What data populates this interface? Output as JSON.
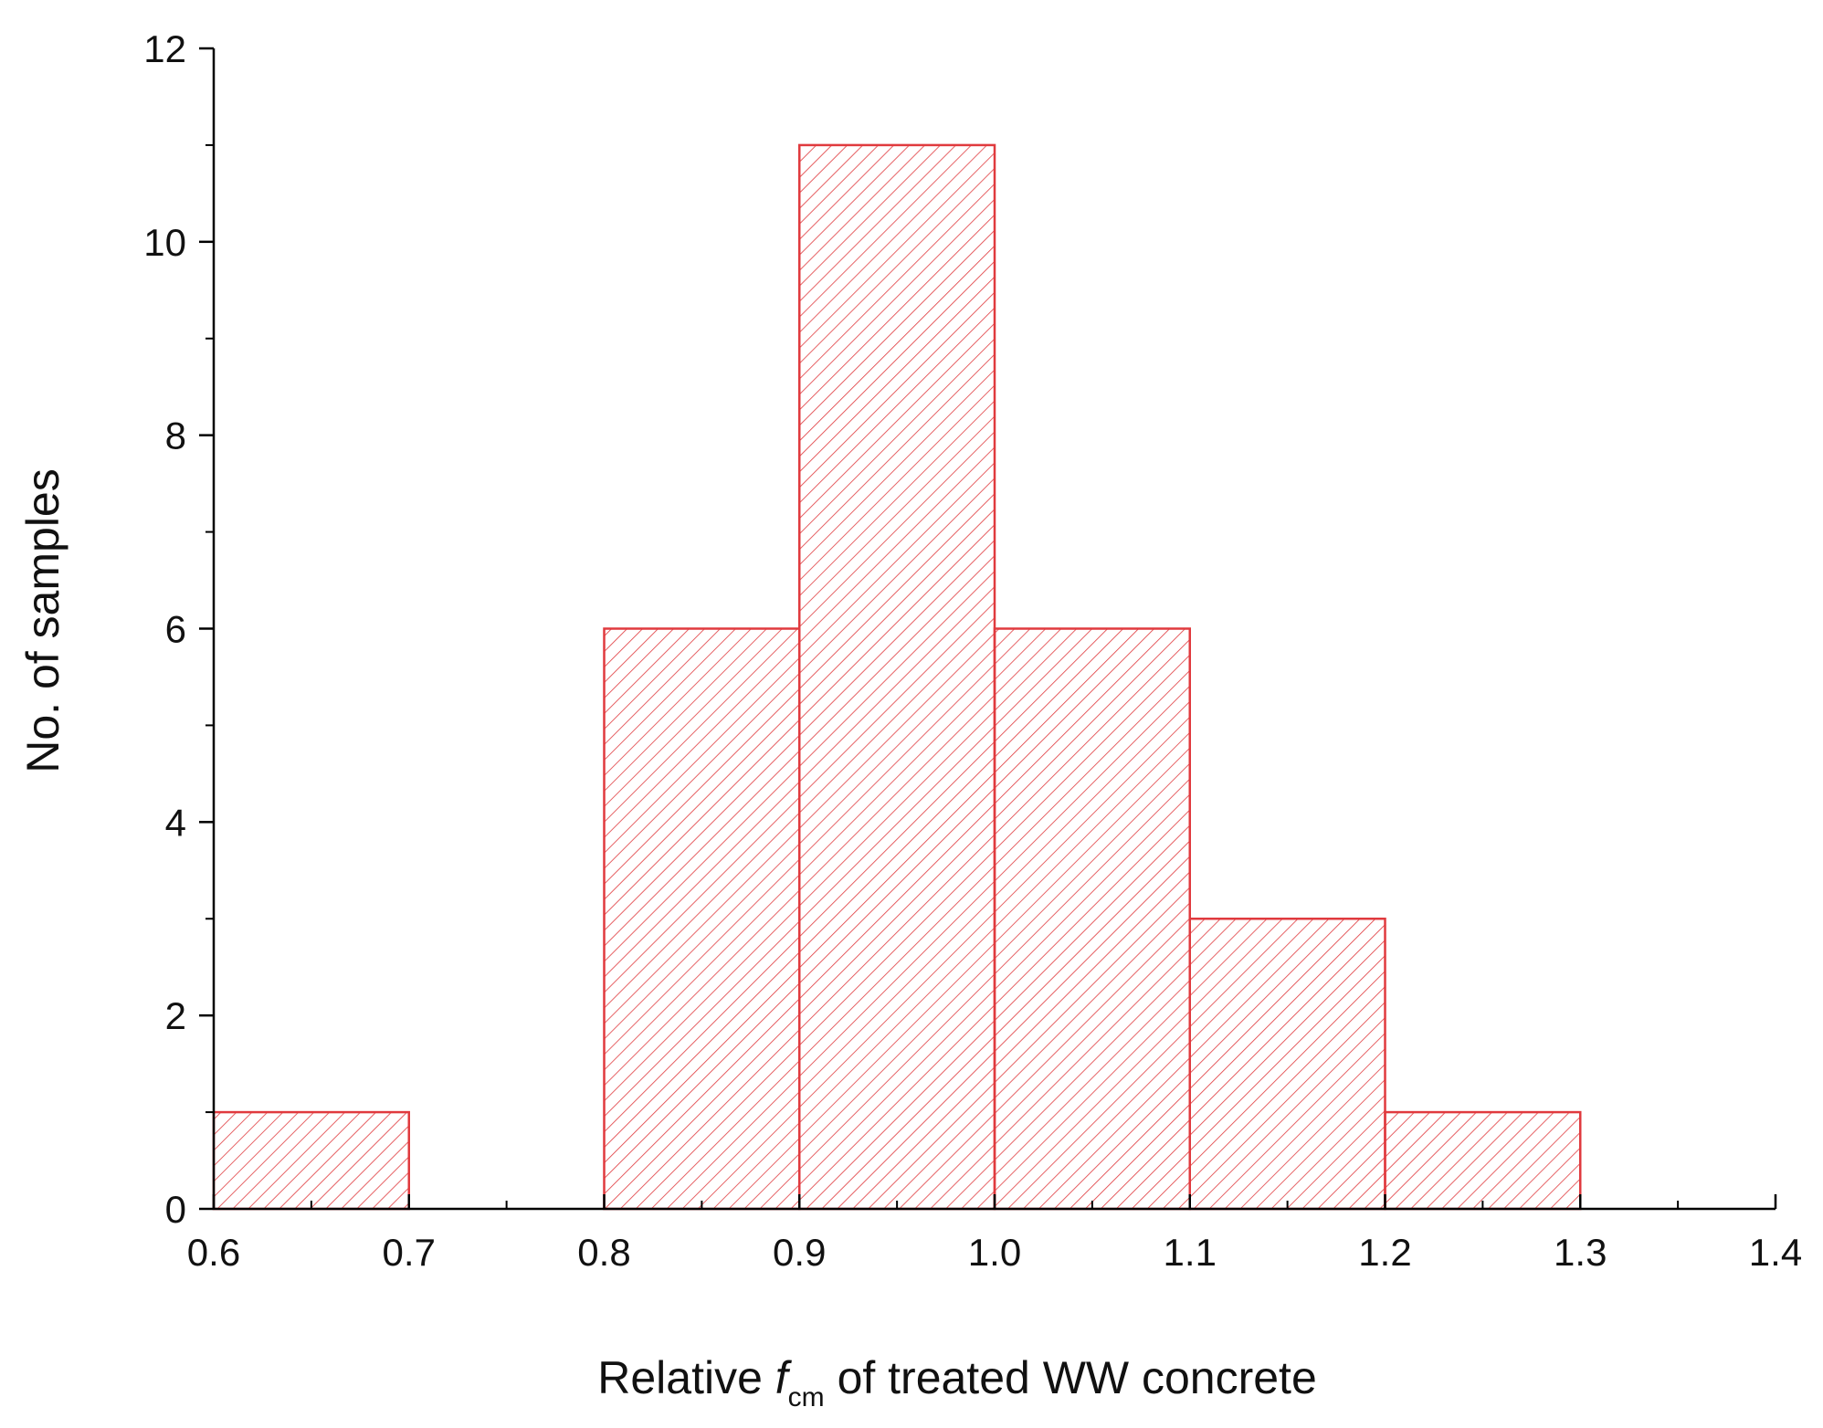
{
  "chart_data": {
    "type": "bar",
    "histogram": true,
    "bin_width": 0.1,
    "bins": [
      {
        "start": 0.6,
        "end": 0.7,
        "count": 1
      },
      {
        "start": 0.7,
        "end": 0.8,
        "count": 0
      },
      {
        "start": 0.8,
        "end": 0.9,
        "count": 6
      },
      {
        "start": 0.9,
        "end": 1.0,
        "count": 11
      },
      {
        "start": 1.0,
        "end": 1.1,
        "count": 6
      },
      {
        "start": 1.1,
        "end": 1.2,
        "count": 3
      },
      {
        "start": 1.2,
        "end": 1.3,
        "count": 1
      }
    ],
    "xlabel": {
      "prefix": "Relative ",
      "symbol": "f",
      "subscript": "cm",
      "suffix": " of  treated WW concrete"
    },
    "ylabel": "No. of samples",
    "xlim": [
      0.6,
      1.4
    ],
    "ylim": [
      0,
      12
    ],
    "x_ticks": [
      "0.6",
      "0.7",
      "0.8",
      "0.9",
      "1.0",
      "1.1",
      "1.2",
      "1.3",
      "1.4"
    ],
    "y_ticks": [
      "0",
      "2",
      "4",
      "6",
      "8",
      "10",
      "12"
    ],
    "grid": false,
    "legend": "none",
    "bar_color": "#e03a3e",
    "bar_fill": "hatched"
  }
}
